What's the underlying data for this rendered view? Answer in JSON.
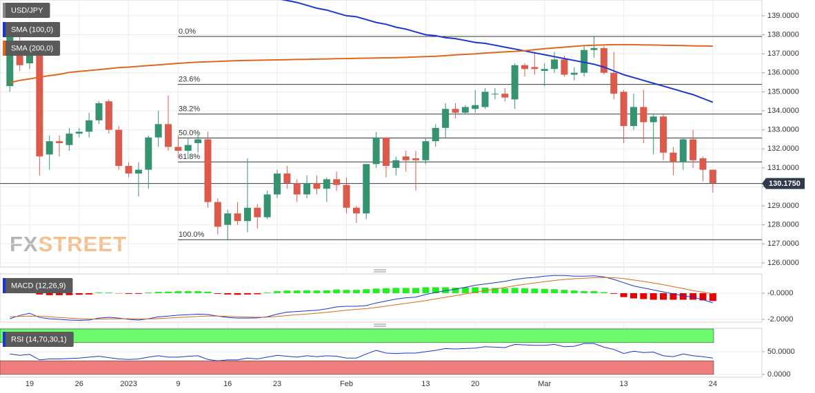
{
  "chart_data": [
    {
      "type": "candlestick",
      "title": "USD/JPY",
      "title_color": "#888888",
      "watermark": {
        "fx": "FX",
        "street": "STREET"
      },
      "categories": [
        null,
        null,
        "19",
        null,
        null,
        null,
        null,
        "26",
        null,
        null,
        null,
        null,
        "2023",
        null,
        null,
        null,
        null,
        "9",
        null,
        null,
        null,
        null,
        "16",
        null,
        null,
        null,
        null,
        "23",
        null,
        null,
        null,
        null,
        null,
        null,
        "Feb",
        null,
        null,
        null,
        null,
        null,
        null,
        null,
        "13",
        null,
        null,
        null,
        null,
        "20",
        null,
        null,
        null,
        null,
        null,
        null,
        "Mar",
        null,
        null,
        null,
        null,
        null,
        null,
        null,
        "13",
        null,
        null,
        null,
        null,
        null,
        null,
        null,
        null,
        "24"
      ],
      "open": [
        135.3,
        137.3,
        136.5,
        136.9,
        131.7,
        132.4,
        132.2,
        132.8,
        132.9,
        133.5,
        134.5,
        133.0,
        131.1,
        130.7,
        130.9,
        132.6,
        133.3,
        132.1,
        131.9,
        132.3,
        132.5,
        129.2,
        128.0,
        128.6,
        128.2,
        128.9,
        128.4,
        129.6,
        130.7,
        130.2,
        129.6,
        130.2,
        129.9,
        130.4,
        130.1,
        128.9,
        128.6,
        131.2,
        132.6,
        131.0,
        131.6,
        131.5,
        131.4,
        132.4,
        133.1,
        134.1,
        133.9,
        134.1,
        134.2,
        134.9,
        134.9,
        134.6,
        136.4,
        136.3,
        136.1,
        136.2,
        136.7,
        135.9,
        136.0,
        137.2,
        137.3,
        136.0,
        135.0,
        133.2,
        134.2,
        133.4,
        133.7,
        131.8,
        131.3,
        132.5,
        131.5,
        130.9
      ],
      "high": [
        138.1,
        137.9,
        137.4,
        137.5,
        132.7,
        132.7,
        133.1,
        133.1,
        133.9,
        134.5,
        134.6,
        133.2,
        131.3,
        131.3,
        132.7,
        134.0,
        134.8,
        132.7,
        132.6,
        132.9,
        132.9,
        129.4,
        128.8,
        129.2,
        131.5,
        129.1,
        129.8,
        130.9,
        131.1,
        130.4,
        130.6,
        130.6,
        130.5,
        130.8,
        130.5,
        129.0,
        131.2,
        132.9,
        132.6,
        131.6,
        131.9,
        131.9,
        132.6,
        133.3,
        134.4,
        134.4,
        134.3,
        135.1,
        135.2,
        135.2,
        135.2,
        136.5,
        136.5,
        137.1,
        136.5,
        137.1,
        136.9,
        136.3,
        137.4,
        137.9,
        137.4,
        137.1,
        135.1,
        134.9,
        135.1,
        133.8,
        133.8,
        132.1,
        132.6,
        133.0,
        131.6,
        130.9
      ],
      "low": [
        135.0,
        136.1,
        136.2,
        130.6,
        130.9,
        131.6,
        131.9,
        132.6,
        132.6,
        133.3,
        132.8,
        130.9,
        130.5,
        129.5,
        129.9,
        132.1,
        131.9,
        131.5,
        131.5,
        131.8,
        128.9,
        127.5,
        127.2,
        128.0,
        127.6,
        127.8,
        128.3,
        129.4,
        129.9,
        129.2,
        129.4,
        129.6,
        129.2,
        129.8,
        128.6,
        128.1,
        128.3,
        131.0,
        130.5,
        130.6,
        130.8,
        129.8,
        131.2,
        132.1,
        132.6,
        133.6,
        133.8,
        133.9,
        134.1,
        134.6,
        134.5,
        134.1,
        135.8,
        135.9,
        135.3,
        136.0,
        135.8,
        135.6,
        135.8,
        136.8,
        135.9,
        134.6,
        132.3,
        133.0,
        132.3,
        131.7,
        131.4,
        130.6,
        130.9,
        131.0,
        130.3,
        129.7
      ],
      "close": [
        137.9,
        136.4,
        136.9,
        131.6,
        132.4,
        132.3,
        132.8,
        132.9,
        133.5,
        134.4,
        133.0,
        131.1,
        130.7,
        130.9,
        132.6,
        133.3,
        132.1,
        131.9,
        132.2,
        132.5,
        129.2,
        127.9,
        128.6,
        128.2,
        128.9,
        128.4,
        129.6,
        130.7,
        130.2,
        129.6,
        130.2,
        129.9,
        130.4,
        130.1,
        128.9,
        128.6,
        131.2,
        132.6,
        131.1,
        131.4,
        131.4,
        131.4,
        132.4,
        133.1,
        134.1,
        133.9,
        134.2,
        134.3,
        135.0,
        134.9,
        134.7,
        136.4,
        136.2,
        136.2,
        136.2,
        136.7,
        135.9,
        136.0,
        137.2,
        137.3,
        136.0,
        134.9,
        133.2,
        134.2,
        133.4,
        133.7,
        131.8,
        131.3,
        132.5,
        131.4,
        130.9,
        130.2
      ],
      "up_color": "#35946f",
      "down_color": "#dc5a4c",
      "series": [
        {
          "name": "SMA (100,0)",
          "color": "#1a35d0",
          "values": [
            null,
            null,
            null,
            null,
            null,
            null,
            null,
            null,
            null,
            null,
            null,
            null,
            null,
            null,
            null,
            null,
            null,
            null,
            null,
            null,
            null,
            null,
            null,
            null,
            null,
            null,
            140.2,
            139.9,
            139.8,
            139.7,
            139.55,
            139.4,
            139.3,
            139.15,
            139.0,
            138.95,
            138.8,
            138.65,
            138.55,
            138.4,
            138.3,
            138.15,
            138.0,
            137.95,
            137.85,
            137.8,
            137.7,
            137.6,
            137.55,
            137.45,
            137.35,
            137.25,
            137.15,
            137.05,
            136.95,
            136.85,
            136.75,
            136.65,
            136.55,
            136.45,
            136.3,
            136.1,
            135.9,
            135.75,
            135.6,
            135.45,
            135.3,
            135.15,
            135.0,
            134.85,
            134.65,
            134.45
          ]
        },
        {
          "name": "SMA (200,0)",
          "color": "#e0661a",
          "values": [
            135.48,
            135.6,
            135.68,
            135.77,
            135.85,
            135.92,
            136.02,
            136.07,
            136.12,
            136.17,
            136.22,
            136.27,
            136.3,
            136.34,
            136.38,
            136.42,
            136.46,
            136.5,
            136.53,
            136.56,
            136.58,
            136.6,
            136.62,
            136.64,
            136.65,
            136.66,
            136.67,
            136.68,
            136.69,
            136.7,
            136.71,
            136.72,
            136.73,
            136.74,
            136.75,
            136.76,
            136.77,
            136.78,
            136.79,
            136.8,
            136.81,
            136.83,
            136.85,
            136.87,
            136.9,
            136.94,
            136.97,
            137.0,
            137.04,
            137.07,
            137.1,
            137.13,
            137.16,
            137.22,
            137.27,
            137.31,
            137.35,
            137.39,
            137.43,
            137.45,
            137.47,
            137.48,
            137.48,
            137.48,
            137.47,
            137.46,
            137.45,
            137.44,
            137.43,
            137.42,
            137.41,
            137.4
          ]
        }
      ],
      "fibonacci": [
        {
          "label": "0.0%",
          "value": 137.91
        },
        {
          "label": "23.6%",
          "value": 135.39
        },
        {
          "label": "38.2%",
          "value": 133.83
        },
        {
          "label": "50.0%",
          "value": 132.57
        },
        {
          "label": "61.8%",
          "value": 131.31
        },
        {
          "label": "100.0%",
          "value": 127.22
        }
      ],
      "last_price": {
        "value": 130.175,
        "label": "130.1750"
      },
      "ylim": [
        125.78,
        139.83
      ],
      "yticks": [
        {
          "value": 126,
          "label": "126.0000"
        },
        {
          "value": 127,
          "label": "127.0000"
        },
        {
          "value": 128,
          "label": "128.0000"
        },
        {
          "value": 129,
          "label": "129.0000"
        },
        {
          "value": 130,
          "label": "130.0000"
        },
        {
          "value": 131,
          "label": "131.0000"
        },
        {
          "value": 132,
          "label": "132.0000"
        },
        {
          "value": 133,
          "label": "133.0000"
        },
        {
          "value": 134,
          "label": "134.0000"
        },
        {
          "value": 135,
          "label": "135.0000"
        },
        {
          "value": 136,
          "label": "136.0000"
        },
        {
          "value": 137,
          "label": "137.0000"
        },
        {
          "value": 138,
          "label": "138.0000"
        },
        {
          "value": 139,
          "label": "139.0000"
        }
      ],
      "grid": true
    },
    {
      "type": "macd",
      "title": "MACD (12,26,9)",
      "title_color": "#1a35d0",
      "histogram": [
        0.1,
        0.1,
        0.1,
        -0.1,
        -0.15,
        -0.15,
        -0.15,
        -0.12,
        -0.1,
        0.05,
        0.05,
        -0.02,
        -0.05,
        -0.05,
        0.05,
        0.1,
        0.12,
        0.15,
        0.15,
        0.15,
        0.12,
        -0.05,
        -0.1,
        -0.12,
        -0.1,
        -0.08,
        0.05,
        0.15,
        0.2,
        0.2,
        0.22,
        0.2,
        0.22,
        0.28,
        0.25,
        0.25,
        0.3,
        0.35,
        0.38,
        0.4,
        0.4,
        0.4,
        0.45,
        0.45,
        0.45,
        0.42,
        0.45,
        0.45,
        0.42,
        0.4,
        0.38,
        0.4,
        0.38,
        0.35,
        0.33,
        0.3,
        0.25,
        0.2,
        0.15,
        0.15,
        0.08,
        -0.05,
        -0.3,
        -0.4,
        -0.45,
        -0.5,
        -0.5,
        -0.5,
        -0.5,
        -0.5,
        -0.55,
        -0.6
      ],
      "positive_color": "#22ee22",
      "negative_color": "#e60000",
      "lines": [
        {
          "color": "#1a35d0",
          "values": [
            -1.95,
            -1.7,
            -1.53,
            -1.85,
            -1.95,
            -2.0,
            -2.05,
            -2.08,
            -2.05,
            -1.9,
            -1.84,
            -1.9,
            -2.0,
            -2.05,
            -1.95,
            -1.8,
            -1.75,
            -1.68,
            -1.65,
            -1.6,
            -1.63,
            -1.75,
            -1.85,
            -1.9,
            -1.9,
            -1.89,
            -1.8,
            -1.6,
            -1.45,
            -1.4,
            -1.35,
            -1.3,
            -1.2,
            -1.05,
            -1.0,
            -1.0,
            -0.95,
            -0.75,
            -0.6,
            -0.45,
            -0.35,
            -0.3,
            -0.1,
            0.05,
            0.2,
            0.3,
            0.45,
            0.6,
            0.7,
            0.8,
            0.9,
            1.05,
            1.15,
            1.2,
            1.3,
            1.35,
            1.35,
            1.3,
            1.3,
            1.33,
            1.25,
            1.05,
            0.8,
            0.55,
            0.4,
            0.25,
            0.1,
            -0.05,
            -0.2,
            -0.3,
            -0.5,
            -0.74
          ]
        },
        {
          "color": "#e0661a",
          "values": [
            -1.8,
            -1.78,
            -1.75,
            -1.76,
            -1.8,
            -1.85,
            -1.9,
            -1.95,
            -1.98,
            -1.98,
            -1.96,
            -1.95,
            -1.95,
            -1.97,
            -1.97,
            -1.94,
            -1.9,
            -1.86,
            -1.82,
            -1.78,
            -1.75,
            -1.75,
            -1.77,
            -1.8,
            -1.82,
            -1.84,
            -1.83,
            -1.78,
            -1.71,
            -1.65,
            -1.59,
            -1.53,
            -1.46,
            -1.38,
            -1.3,
            -1.24,
            -1.18,
            -1.09,
            -0.99,
            -0.88,
            -0.78,
            -0.68,
            -0.57,
            -0.44,
            -0.31,
            -0.19,
            -0.06,
            0.07,
            0.2,
            0.32,
            0.44,
            0.56,
            0.68,
            0.78,
            0.88,
            0.97,
            1.05,
            1.1,
            1.14,
            1.18,
            1.2,
            1.18,
            1.12,
            1.0,
            0.9,
            0.77,
            0.65,
            0.5,
            0.35,
            0.2,
            0.08,
            -0.05
          ]
        }
      ],
      "ylim": [
        -2.21,
        1.47
      ],
      "yticks": [
        {
          "value": 0,
          "label": "-0.0000"
        },
        {
          "value": -2,
          "label": "-2.0000"
        }
      ],
      "grid": true
    },
    {
      "type": "rsi",
      "title": "RSI (14,70,30,1)",
      "title_color": "#1a35d0",
      "values": [
        45,
        42,
        44,
        32,
        34,
        34,
        35,
        36,
        38,
        40,
        37,
        34,
        33,
        34,
        38,
        41,
        38,
        38,
        40,
        41,
        33,
        30,
        32,
        32,
        36,
        34,
        38,
        42,
        40,
        38,
        41,
        39,
        41,
        40,
        36,
        36,
        45,
        53,
        47,
        46,
        47,
        47,
        50,
        53,
        57,
        56,
        57,
        58,
        61,
        60,
        59,
        66,
        65,
        64,
        64,
        66,
        61,
        62,
        68,
        68,
        60,
        55,
        46,
        51,
        48,
        49,
        41,
        39,
        45,
        41,
        39,
        36
      ],
      "color": "#1a35d0",
      "bands": [
        {
          "from": 70,
          "to": 100,
          "color": "#6cfa6c"
        },
        {
          "from": 0,
          "to": 30,
          "color": "#f07d7d"
        }
      ],
      "ylim": [
        -6.1,
        101.5
      ],
      "yticks": [
        {
          "value": 50,
          "label": "50.0000"
        },
        {
          "value": 0,
          "label": "0.0000"
        }
      ],
      "grid": true
    }
  ]
}
